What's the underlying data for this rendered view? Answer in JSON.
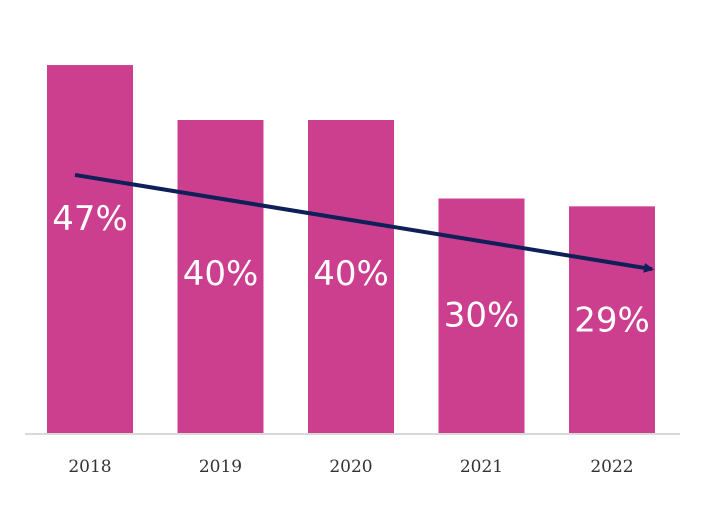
{
  "chart_data": {
    "type": "bar",
    "categories": [
      "2018",
      "2019",
      "2020",
      "2021",
      "2022"
    ],
    "values": [
      47,
      40,
      40,
      30,
      29
    ],
    "value_labels": [
      "47%",
      "40%",
      "40%",
      "30%",
      "29%"
    ],
    "title": "",
    "xlabel": "",
    "ylabel": "",
    "ylim": [
      0,
      50
    ],
    "grid": false,
    "legend": "none",
    "annotations": [
      {
        "type": "trend-arrow",
        "description": "downward trend arrow",
        "from": {
          "x": "2018",
          "y": 33
        },
        "to": {
          "x": "2022",
          "y": 21
        }
      }
    ]
  },
  "colors": {
    "bar": "#cc3f8f",
    "arrow": "#0f1f57",
    "axis": "#d9d9d9",
    "bar_label": "#ffffff",
    "tick_label": "#333333"
  }
}
